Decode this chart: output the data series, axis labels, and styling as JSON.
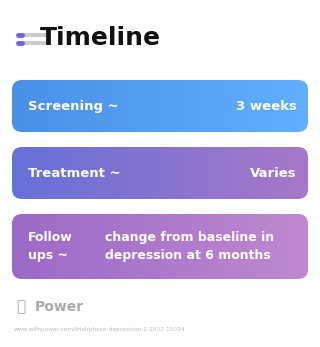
{
  "title": "Timeline",
  "title_fontsize": 18,
  "title_color": "#111111",
  "title_icon_color": "#7B5CF0",
  "bg_color": "#ffffff",
  "rows": [
    {
      "left_text": "Screening ~",
      "right_text": "3 weeks",
      "col_left": "#4A8FE8",
      "col_right": "#60B0FF"
    },
    {
      "left_text": "Treatment ~",
      "right_text": "Varies",
      "col_left": "#6570D8",
      "col_right": "#A878C8"
    },
    {
      "left_text": "Follow\nups ~",
      "right_text": "change from baseline in\ndepression at 6 months",
      "col_left": "#9B6AC8",
      "col_right": "#C088D0"
    }
  ],
  "footer_text": "Power",
  "url_text": "www.withpower.com/trial/phase-depression-2-2022-15024",
  "footer_color": "#aaaaaa",
  "url_color": "#bbbbbb"
}
